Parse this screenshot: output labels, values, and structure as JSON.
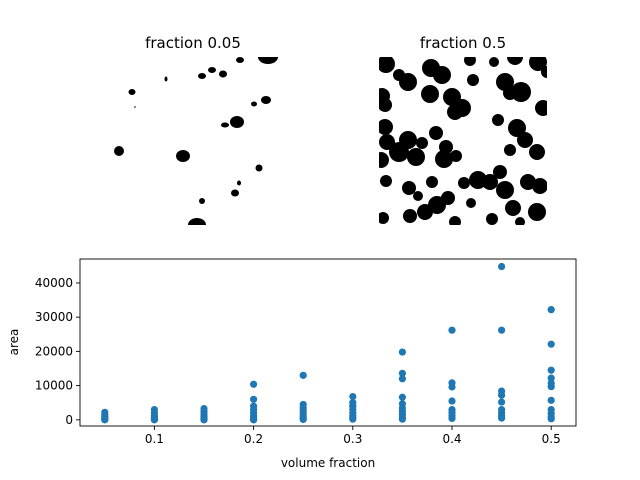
{
  "panels": [
    {
      "title": "fraction 0.05",
      "fraction": 0.05
    },
    {
      "title": "fraction 0.5",
      "fraction": 0.5
    }
  ],
  "colors": {
    "points": "#1f77b4",
    "blobs": "#000000",
    "axes": "#000000",
    "background": "#ffffff"
  },
  "chart_data": {
    "type": "scatter",
    "xlabel": "volume fraction",
    "ylabel": "area",
    "xlim": [
      0.025,
      0.525
    ],
    "ylim": [
      -1800,
      47000
    ],
    "xticks": [
      0.1,
      0.2,
      0.3,
      0.4,
      0.5
    ],
    "xtick_labels": [
      "0.1",
      "0.2",
      "0.3",
      "0.4",
      "0.5"
    ],
    "yticks": [
      0,
      10000,
      20000,
      30000,
      40000
    ],
    "ytick_labels": [
      "0",
      "10000",
      "20000",
      "30000",
      "40000"
    ],
    "grid": false,
    "series": [
      {
        "points": [
          [
            0.05,
            2200
          ],
          [
            0.05,
            1500
          ],
          [
            0.05,
            1000
          ],
          [
            0.05,
            600
          ],
          [
            0.05,
            300
          ],
          [
            0.05,
            100
          ],
          [
            0.05,
            0
          ],
          [
            0.1,
            3000
          ],
          [
            0.1,
            2000
          ],
          [
            0.1,
            1300
          ],
          [
            0.1,
            800
          ],
          [
            0.1,
            400
          ],
          [
            0.1,
            150
          ],
          [
            0.1,
            0
          ],
          [
            0.15,
            3300
          ],
          [
            0.15,
            2400
          ],
          [
            0.15,
            1600
          ],
          [
            0.15,
            1000
          ],
          [
            0.15,
            500
          ],
          [
            0.15,
            200
          ],
          [
            0.15,
            0
          ],
          [
            0.2,
            10400
          ],
          [
            0.2,
            6000
          ],
          [
            0.2,
            4000
          ],
          [
            0.2,
            3000
          ],
          [
            0.2,
            2000
          ],
          [
            0.2,
            1200
          ],
          [
            0.2,
            600
          ],
          [
            0.2,
            200
          ],
          [
            0.2,
            0
          ],
          [
            0.25,
            13000
          ],
          [
            0.25,
            4500
          ],
          [
            0.25,
            3500
          ],
          [
            0.25,
            2600
          ],
          [
            0.25,
            1800
          ],
          [
            0.25,
            1000
          ],
          [
            0.25,
            500
          ],
          [
            0.25,
            100
          ],
          [
            0.3,
            6800
          ],
          [
            0.3,
            5000
          ],
          [
            0.3,
            4000
          ],
          [
            0.3,
            3000
          ],
          [
            0.3,
            2000
          ],
          [
            0.3,
            1300
          ],
          [
            0.3,
            700
          ],
          [
            0.3,
            200
          ],
          [
            0.35,
            19800
          ],
          [
            0.35,
            13600
          ],
          [
            0.35,
            12000
          ],
          [
            0.35,
            6600
          ],
          [
            0.35,
            4700
          ],
          [
            0.35,
            3400
          ],
          [
            0.35,
            2400
          ],
          [
            0.35,
            1500
          ],
          [
            0.35,
            700
          ],
          [
            0.35,
            200
          ],
          [
            0.4,
            26200
          ],
          [
            0.4,
            10800
          ],
          [
            0.4,
            9600
          ],
          [
            0.4,
            5500
          ],
          [
            0.4,
            3000
          ],
          [
            0.4,
            2100
          ],
          [
            0.4,
            1200
          ],
          [
            0.4,
            400
          ],
          [
            0.45,
            44800
          ],
          [
            0.45,
            26200
          ],
          [
            0.45,
            8400
          ],
          [
            0.45,
            7200
          ],
          [
            0.45,
            5200
          ],
          [
            0.45,
            3000
          ],
          [
            0.45,
            2000
          ],
          [
            0.45,
            1200
          ],
          [
            0.45,
            500
          ],
          [
            0.5,
            32200
          ],
          [
            0.5,
            22100
          ],
          [
            0.5,
            14500
          ],
          [
            0.5,
            12200
          ],
          [
            0.5,
            10700
          ],
          [
            0.5,
            9700
          ],
          [
            0.5,
            5700
          ],
          [
            0.5,
            3000
          ],
          [
            0.5,
            1800
          ],
          [
            0.5,
            900
          ],
          [
            0.5,
            300
          ]
        ]
      }
    ]
  }
}
